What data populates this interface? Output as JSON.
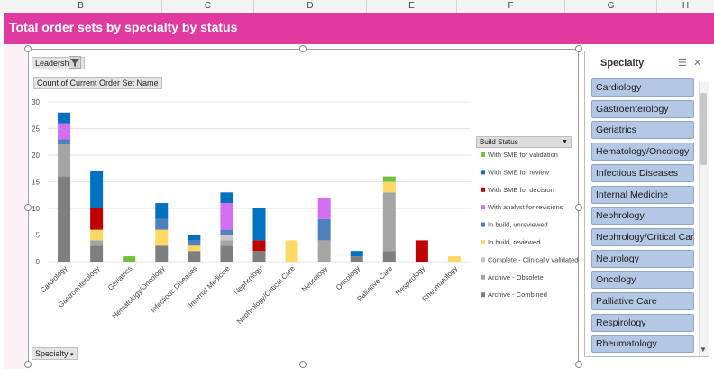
{
  "columns": [
    "B",
    "C",
    "D",
    "E",
    "F",
    "G",
    "H"
  ],
  "title": "Total order sets by specialty by status",
  "chart_filters": {
    "leadership": "Leadership",
    "value_field": "Count of Current Order Set Name",
    "specialty": "Specialty"
  },
  "legend_title": "Build  Status",
  "chart_data": {
    "type": "bar",
    "stacked": true,
    "ylim": [
      0,
      30
    ],
    "yticks": [
      0,
      5,
      10,
      15,
      20,
      25,
      30
    ],
    "categories": [
      "Cardiology",
      "Gastroenterology",
      "Geriatrics",
      "Hematology/Oncology",
      "Infectious Diseases",
      "Internal Medicine",
      "Nephrology",
      "Nephrology/Critical Care",
      "Neurology",
      "Oncology",
      "Palliative Care",
      "Respirology",
      "Rheumatology"
    ],
    "series": [
      {
        "name": "Archive - Combined",
        "color": "#7f7f7f",
        "values": [
          16,
          3,
          0,
          3,
          2,
          3,
          2,
          0,
          0,
          1,
          2,
          0,
          0
        ]
      },
      {
        "name": "Archive - Obsolete",
        "color": "#a5a5a5",
        "values": [
          6,
          1,
          0,
          0,
          0,
          1,
          0,
          0,
          4,
          0,
          11,
          0,
          0
        ]
      },
      {
        "name": "Complete - Clinically validated",
        "color": "#c6c6c6",
        "values": [
          0,
          0,
          0,
          0,
          0,
          1,
          0,
          0,
          0,
          0,
          0,
          0,
          0
        ]
      },
      {
        "name": "In build, reviewed",
        "color": "#ffd966",
        "values": [
          0,
          2,
          0,
          3,
          1,
          0,
          0,
          4,
          0,
          0,
          2,
          0,
          1
        ]
      },
      {
        "name": "In build, unreviewed",
        "color": "#4f81bd",
        "values": [
          1,
          0,
          0,
          2,
          1,
          1,
          0,
          0,
          4,
          0,
          0,
          0,
          0
        ]
      },
      {
        "name": "With analyst for revisions",
        "color": "#d46ef0",
        "values": [
          3,
          0,
          0,
          0,
          0,
          5,
          0,
          0,
          4,
          0,
          0,
          0,
          0
        ]
      },
      {
        "name": "With SME for decision",
        "color": "#c00000",
        "values": [
          0,
          4,
          0,
          0,
          0,
          0,
          2,
          0,
          0,
          0,
          0,
          4,
          0
        ]
      },
      {
        "name": "With SME for review",
        "color": "#0070c0",
        "values": [
          2,
          7,
          0,
          3,
          1,
          2,
          6,
          0,
          0,
          1,
          0,
          0,
          0
        ]
      },
      {
        "name": "With SME for validation",
        "color": "#70c040",
        "values": [
          0,
          0,
          1,
          0,
          0,
          0,
          0,
          0,
          0,
          0,
          1,
          0,
          0
        ]
      }
    ]
  },
  "slicer": {
    "header": "Specialty",
    "items": [
      "Cardiology",
      "Gastroenterology",
      "Geriatrics",
      "Hematology/Oncology",
      "Infectious Diseases",
      "Internal Medicine",
      "Nephrology",
      "Nephrology/Critical Care",
      "Neurology",
      "Oncology",
      "Palliative Care",
      "Respirology",
      "Rheumatology"
    ]
  },
  "icons": {
    "filter": "funnel-icon",
    "dropdown": "chevron-down-icon",
    "add_element": "plus-icon",
    "chart_style": "brush-icon",
    "multi_select": "checklist-icon",
    "clear_filter": "clear-filter-icon"
  }
}
